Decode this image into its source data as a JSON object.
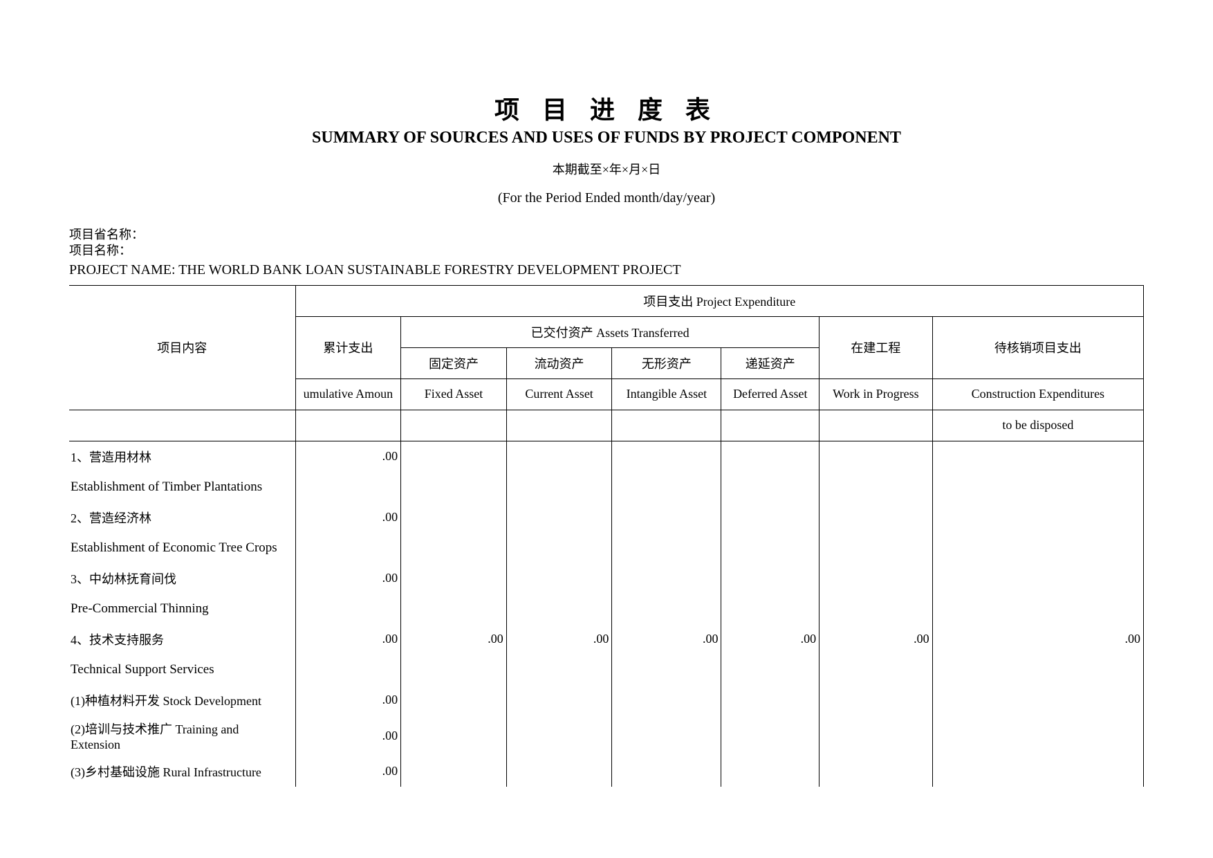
{
  "title_cn": "项 目 进 度 表",
  "title_en": "SUMMARY OF SOURCES AND USES OF FUNDS BY PROJECT COMPONENT",
  "period_cn": "本期截至×年×月×日",
  "period_en": "(For the Period Ended month/day/year)",
  "meta": {
    "province_label": "项目省名称：",
    "project_label": "项目名称：",
    "project_name_en": "PROJECT NAME: THE WORLD BANK LOAN SUSTAINABLE FORESTRY DEVELOPMENT PROJECT"
  },
  "headers": {
    "group_top": "项目支出 Project Expenditure",
    "item_cn": "项目内容",
    "cum_cn": "累计支出",
    "cum_en": "umulative Amoun",
    "assets_cn_en": "已交付资产 Assets Transferred",
    "fixed_cn": "固定资产",
    "fixed_en": "Fixed Asset",
    "current_cn": "流动资产",
    "current_en": "Current Asset",
    "intangible_cn": "无形资产",
    "intangible_en": "Intangible Asset",
    "deferred_cn": "递延资产",
    "deferred_en": "Deferred Asset",
    "wip_cn": "在建工程",
    "wip_en": "Work in Progress",
    "ce_cn": "待核销项目支出",
    "ce_en1": "Construction Expenditures",
    "ce_en2": "to be disposed"
  },
  "rows": [
    {
      "cn": "1、营造用材林",
      "cum": ".00"
    },
    {
      "en": "Establishment of Timber Plantations"
    },
    {
      "cn": "2、营造经济林",
      "cum": ".00"
    },
    {
      "en": "Establishment of Economic Tree Crops"
    },
    {
      "cn": "3、中幼林抚育间伐",
      "cum": ".00"
    },
    {
      "en": "Pre-Commercial Thinning"
    },
    {
      "cn": "4、技术支持服务",
      "cum": ".00",
      "fa": ".00",
      "ca": ".00",
      "ia": ".00",
      "da": ".00",
      "wip": ".00",
      "ce": ".00"
    },
    {
      "en": "Technical Support Services"
    },
    {
      "cn": "(1)种植材料开发 Stock Development",
      "cum": ".00"
    },
    {
      "cn": "(2)培训与技术推广 Training and Extension",
      "cum": ".00"
    },
    {
      "cn": "(3)乡村基础设施 Rural Infrastructure",
      "cum": ".00"
    }
  ]
}
